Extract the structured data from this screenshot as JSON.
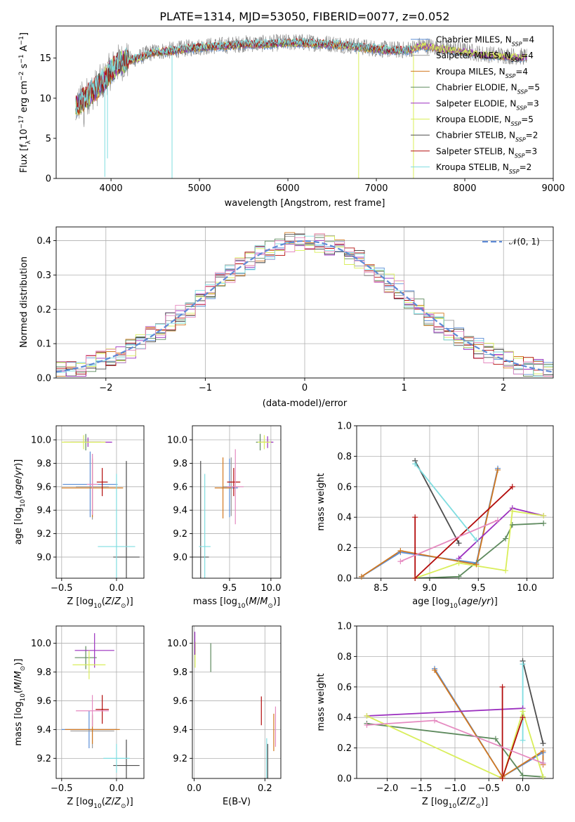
{
  "title": "PLATE=1314, MJD=53050, FIBERID=0077, z=0.052",
  "colors": {
    "Chabrier MILES": "#5b8ed6",
    "Salpeter MILES": "#9a9a9a",
    "Kroupa MILES": "#d2781f",
    "Chabrier ELODIE": "#5e8a5e",
    "Salpeter ELODIE": "#9b2fbf",
    "Kroupa ELODIE": "#d9ee5a",
    "Chabrier STELIB": "#4d4d4d",
    "Salpeter STELIB": "#b30c0c",
    "Kroupa STELIB": "#7fdde0",
    "pink": "#e58ac0",
    "data": "#808080",
    "gauss": "#5e8ad6"
  },
  "chart_data": [
    {
      "id": "spectrum",
      "type": "line",
      "xlabel": "wavelength [Angstrom, rest frame]",
      "ylabel": "Flux [fλ10⁻¹⁷ erg cm⁻² s⁻¹ A⁻¹]",
      "xlim": [
        3380,
        9000
      ],
      "ylim": [
        0,
        19
      ],
      "xticks": [
        4000,
        5000,
        6000,
        7000,
        8000,
        9000
      ],
      "yticks": [
        0,
        5,
        10,
        15
      ],
      "grid": false,
      "legend_position": "right",
      "legend": [
        {
          "name": "Chabrier MILES",
          "nssp": "4"
        },
        {
          "name": "Salpeter MILES",
          "nssp": "4"
        },
        {
          "name": "Kroupa MILES",
          "nssp": "4"
        },
        {
          "name": "Chabrier ELODIE",
          "nssp": "5"
        },
        {
          "name": "Salpeter ELODIE",
          "nssp": "3"
        },
        {
          "name": "Kroupa ELODIE",
          "nssp": "5"
        },
        {
          "name": "Chabrier STELIB",
          "nssp": "2"
        },
        {
          "name": "Salpeter STELIB",
          "nssp": "3"
        },
        {
          "name": "Kroupa STELIB",
          "nssp": "2"
        }
      ],
      "continuum": {
        "x": [
          3600,
          3700,
          3800,
          3900,
          4000,
          4100,
          4200,
          4300,
          4400,
          4500,
          4700,
          4900,
          5100,
          5300,
          5500,
          5700,
          5900,
          6100,
          6300,
          6500,
          6700,
          6900,
          7100,
          7300,
          7400,
          7500,
          7600,
          7700,
          7800,
          8000,
          8200,
          8400,
          8600
        ],
        "y": [
          9,
          10,
          11,
          12,
          13.5,
          14.5,
          14.8,
          15,
          15.5,
          15.8,
          16,
          16.3,
          16.5,
          16.6,
          16.8,
          16.8,
          16.9,
          17,
          16.9,
          16.8,
          16.6,
          16.3,
          16.1,
          16,
          16.2,
          16.6,
          16.5,
          16.3,
          16.2,
          15.9,
          15.5,
          15.4,
          15.2
        ]
      },
      "models_end": {
        "STELIB": 7400,
        "others": 8700
      }
    },
    {
      "id": "residuals",
      "type": "histogram",
      "xlabel": "(data-model)/error",
      "ylabel": "Normed distribution",
      "xlim": [
        -2.5,
        2.5
      ],
      "ylim": [
        0,
        0.44
      ],
      "xticks": [
        -2,
        -1,
        0,
        1,
        2
      ],
      "yticks": [
        0,
        0.1,
        0.2,
        0.3,
        0.4
      ],
      "grid": true,
      "legend_position": "top-right",
      "legend": [
        {
          "name": "𝒩(0, 1)"
        }
      ],
      "bin_width": 0.1,
      "gaussian": {
        "mean": 0,
        "sigma": 1
      }
    },
    {
      "id": "age-vs-Z",
      "type": "scatter",
      "xlabel": "Z [log₁₀(Z/Z⊙)]",
      "ylabel": "age  [log₁₀(age/yr)]",
      "xlim": [
        -0.55,
        0.25
      ],
      "ylim": [
        8.82,
        10.12
      ],
      "xticks": [
        -0.5,
        0.0
      ],
      "yticks": [
        9.0,
        9.2,
        9.4,
        9.6,
        9.8,
        10.0
      ],
      "grid": true,
      "points": [
        {
          "model": "Chabrier MILES",
          "x": -0.24,
          "y": 9.62,
          "xerr": 0.25,
          "yerr": 0.28
        },
        {
          "model": "Salpeter MILES",
          "x": -0.22,
          "y": 9.6,
          "xerr": 0.15,
          "yerr": 0.28
        },
        {
          "model": "Kroupa MILES",
          "x": -0.22,
          "y": 9.59,
          "xerr": 0.28,
          "yerr": 0.25
        },
        {
          "model": "Chabrier ELODIE",
          "x": -0.28,
          "y": 9.98,
          "xerr": 0.14,
          "yerr": 0.07
        },
        {
          "model": "Salpeter ELODIE",
          "x": -0.26,
          "y": 9.98,
          "xerr": 0.22,
          "yerr": 0.04
        },
        {
          "model": "Kroupa ELODIE",
          "x": -0.3,
          "y": 9.98,
          "xerr": 0.2,
          "yerr": 0.06
        },
        {
          "model": "Chabrier STELIB",
          "x": 0.09,
          "y": 9.0,
          "xerr": 0.12,
          "yerr": 0.82
        },
        {
          "model": "Salpeter STELIB",
          "x": -0.13,
          "y": 9.64,
          "xerr": 0.05,
          "yerr": 0.12
        },
        {
          "model": "Kroupa STELIB",
          "x": 0.0,
          "y": 9.09,
          "xerr": 0.17,
          "yerr": 0.62
        },
        {
          "model": "pink",
          "x": -0.22,
          "y": 9.62,
          "xerr": 0.05,
          "yerr": 0.26
        }
      ]
    },
    {
      "id": "age-vs-mass",
      "type": "scatter",
      "xlabel": "mass [log₁₀(M/M⊙)]",
      "ylabel": "",
      "xlim": [
        9.05,
        10.12
      ],
      "ylim": [
        8.82,
        10.12
      ],
      "xticks": [
        9.5,
        10.0
      ],
      "yticks": [
        9.0,
        9.2,
        9.4,
        9.6,
        9.8,
        10.0
      ],
      "grid": true,
      "points": [
        {
          "model": "Chabrier MILES",
          "x": 9.5,
          "y": 9.59,
          "xerr": 0.1,
          "yerr": 0.25
        },
        {
          "model": "Salpeter MILES",
          "x": 9.52,
          "y": 9.6,
          "xerr": 0.1,
          "yerr": 0.25
        },
        {
          "model": "Kroupa MILES",
          "x": 9.42,
          "y": 9.59,
          "xerr": 0.1,
          "yerr": 0.26
        },
        {
          "model": "Chabrier ELODIE",
          "x": 9.87,
          "y": 9.98,
          "xerr": 0.05,
          "yerr": 0.07
        },
        {
          "model": "Salpeter ELODIE",
          "x": 9.96,
          "y": 9.98,
          "xerr": 0.07,
          "yerr": 0.05
        },
        {
          "model": "Kroupa ELODIE",
          "x": 9.92,
          "y": 9.98,
          "xerr": 0.08,
          "yerr": 0.06
        },
        {
          "model": "Chabrier STELIB",
          "x": 9.15,
          "y": 9.0,
          "xerr": 0.1,
          "yerr": 0.82
        },
        {
          "model": "Salpeter STELIB",
          "x": 9.55,
          "y": 9.64,
          "xerr": 0.08,
          "yerr": 0.12
        },
        {
          "model": "Kroupa STELIB",
          "x": 9.2,
          "y": 9.09,
          "xerr": 0.07,
          "yerr": 0.62
        },
        {
          "model": "pink",
          "x": 9.57,
          "y": 9.6,
          "xerr": 0.1,
          "yerr": 0.32
        }
      ]
    },
    {
      "id": "weight-vs-age",
      "type": "line",
      "xlabel": "age  [log₁₀(age/yr)]",
      "ylabel": "mass weight",
      "xlim": [
        8.25,
        10.27
      ],
      "ylim": [
        0.0,
        1.0
      ],
      "xticks": [
        8.5,
        9.0,
        9.5,
        10.0
      ],
      "yticks": [
        0.0,
        0.2,
        0.4,
        0.6,
        0.8,
        1.0
      ],
      "grid": true,
      "series": [
        {
          "model": "Chabrier MILES",
          "x": [
            8.3,
            8.7,
            9.48,
            9.7
          ],
          "y": [
            0.01,
            0.17,
            0.1,
            0.72
          ]
        },
        {
          "model": "Kroupa MILES",
          "x": [
            8.3,
            8.7,
            9.48,
            9.7
          ],
          "y": [
            0.01,
            0.18,
            0.09,
            0.71
          ]
        },
        {
          "model": "Chabrier ELODIE",
          "x": [
            8.85,
            9.3,
            9.78,
            9.85,
            10.17
          ],
          "y": [
            0.0,
            0.01,
            0.26,
            0.35,
            0.36
          ]
        },
        {
          "model": "Salpeter ELODIE",
          "x": [
            9.3,
            9.85,
            10.17
          ],
          "y": [
            0.13,
            0.46,
            0.41
          ]
        },
        {
          "model": "Kroupa ELODIE",
          "x": [
            8.85,
            9.3,
            9.78,
            9.85,
            10.17
          ],
          "y": [
            0.0,
            0.1,
            0.05,
            0.44,
            0.41
          ]
        },
        {
          "model": "Chabrier STELIB",
          "x": [
            8.85,
            9.3
          ],
          "y": [
            0.77,
            0.23
          ]
        },
        {
          "model": "Salpeter STELIB",
          "x": [
            8.85,
            8.85,
            9.85
          ],
          "y": [
            0.4,
            0.0,
            0.6
          ]
        },
        {
          "model": "Kroupa STELIB",
          "x": [
            8.85,
            9.48
          ],
          "y": [
            0.75,
            0.25
          ]
        },
        {
          "model": "pink",
          "x": [
            8.7,
            9.7
          ],
          "y": [
            0.11,
            0.38
          ]
        }
      ]
    },
    {
      "id": "mass-vs-Z",
      "type": "scatter",
      "xlabel": "Z [log₁₀(Z/Z⊙)]",
      "ylabel": "mass [log₁₀(M/M⊙)]",
      "xlim": [
        -0.55,
        0.25
      ],
      "ylim": [
        9.06,
        10.12
      ],
      "xticks": [
        -0.5,
        0.0
      ],
      "yticks": [
        9.2,
        9.4,
        9.6,
        9.8,
        10.0
      ],
      "grid": true,
      "points": [
        {
          "model": "Chabrier MILES",
          "x": -0.25,
          "y": 9.4,
          "xerr": 0.25,
          "yerr": 0.13
        },
        {
          "model": "Salpeter MILES",
          "x": -0.22,
          "y": 9.39,
          "xerr": 0.2,
          "yerr": 0.12
        },
        {
          "model": "Kroupa MILES",
          "x": -0.22,
          "y": 9.4,
          "xerr": 0.25,
          "yerr": 0.1
        },
        {
          "model": "Chabrier ELODIE",
          "x": -0.28,
          "y": 9.9,
          "xerr": 0.1,
          "yerr": 0.08
        },
        {
          "model": "Salpeter ELODIE",
          "x": -0.2,
          "y": 9.95,
          "xerr": 0.18,
          "yerr": 0.12
        },
        {
          "model": "Kroupa ELODIE",
          "x": -0.25,
          "y": 9.85,
          "xerr": 0.15,
          "yerr": 0.1
        },
        {
          "model": "Chabrier STELIB",
          "x": 0.09,
          "y": 9.15,
          "xerr": 0.12,
          "yerr": 0.18
        },
        {
          "model": "Salpeter STELIB",
          "x": -0.13,
          "y": 9.54,
          "xerr": 0.06,
          "yerr": 0.1
        },
        {
          "model": "Kroupa STELIB",
          "x": 0.0,
          "y": 9.2,
          "xerr": 0.12,
          "yerr": 0.1
        },
        {
          "model": "pink",
          "x": -0.22,
          "y": 9.53,
          "xerr": 0.15,
          "yerr": 0.11
        }
      ]
    },
    {
      "id": "mass-vs-EBV",
      "type": "scatter",
      "xlabel": "E(B-V)",
      "ylabel": "",
      "xlim": [
        -0.005,
        0.245
      ],
      "ylim": [
        9.06,
        10.12
      ],
      "xticks": [
        0.0,
        0.2
      ],
      "yticks": [
        9.2,
        9.4,
        9.6,
        9.8,
        10.0
      ],
      "grid": true,
      "points": [
        {
          "model": "Kroupa ELODIE",
          "x": 0.003,
          "y": 9.92,
          "xerr": 0.0,
          "yerr": 0.09
        },
        {
          "model": "Salpeter ELODIE",
          "x": 0.002,
          "y": 10.0,
          "xerr": 0.0,
          "yerr": 0.08
        },
        {
          "model": "Chabrier ELODIE",
          "x": 0.047,
          "y": 9.9,
          "xerr": 0.0,
          "yerr": 0.1
        },
        {
          "model": "Salpeter STELIB",
          "x": 0.19,
          "y": 9.53,
          "xerr": 0.0,
          "yerr": 0.1
        },
        {
          "model": "Kroupa STELIB",
          "x": 0.205,
          "y": 9.2,
          "xerr": 0.0,
          "yerr": 0.14
        },
        {
          "model": "Chabrier STELIB",
          "x": 0.208,
          "y": 9.18,
          "xerr": 0.0,
          "yerr": 0.12
        },
        {
          "model": "Kroupa MILES",
          "x": 0.225,
          "y": 9.38,
          "xerr": 0.0,
          "yerr": 0.13
        },
        {
          "model": "pink",
          "x": 0.23,
          "y": 9.42,
          "xerr": 0.0,
          "yerr": 0.14
        }
      ]
    },
    {
      "id": "weight-vs-Z",
      "type": "line",
      "xlabel": "Z [log₁₀(Z/Z⊙)]",
      "ylabel": "mass weight",
      "xlim": [
        -2.45,
        0.45
      ],
      "ylim": [
        0.0,
        1.0
      ],
      "xticks": [
        -2.0,
        -1.5,
        -1.0,
        -0.5,
        0.0
      ],
      "yticks": [
        0.0,
        0.2,
        0.4,
        0.6,
        0.8,
        1.0
      ],
      "grid": true,
      "series": [
        {
          "model": "Chabrier MILES",
          "x": [
            -1.3,
            -0.3,
            0.3,
            0.3
          ],
          "y": [
            0.72,
            0.01,
            0.17,
            0.1
          ]
        },
        {
          "model": "Kroupa MILES",
          "x": [
            -1.3,
            -0.3,
            0.3,
            0.3
          ],
          "y": [
            0.71,
            0.01,
            0.18,
            0.09
          ]
        },
        {
          "model": "Chabrier ELODIE",
          "x": [
            -2.3,
            -0.4,
            0.0,
            0.3
          ],
          "y": [
            0.36,
            0.26,
            0.02,
            0.01
          ]
        },
        {
          "model": "Salpeter ELODIE",
          "x": [
            -2.3,
            0.0
          ],
          "y": [
            0.41,
            0.46
          ]
        },
        {
          "model": "Kroupa ELODIE",
          "x": [
            -2.3,
            -0.3,
            0.0,
            0.3
          ],
          "y": [
            0.41,
            0.0,
            0.44,
            0.01
          ]
        },
        {
          "model": "Chabrier STELIB",
          "x": [
            0.0,
            0.3
          ],
          "y": [
            0.77,
            0.23
          ]
        },
        {
          "model": "Salpeter STELIB",
          "x": [
            -0.3,
            -0.3,
            0.0
          ],
          "y": [
            0.6,
            0.0,
            0.4
          ]
        },
        {
          "model": "Kroupa STELIB",
          "x": [
            0.0,
            0.0
          ],
          "y": [
            0.75,
            0.25
          ]
        },
        {
          "model": "pink",
          "x": [
            -2.3,
            -1.3,
            0.3
          ],
          "y": [
            0.35,
            0.38,
            0.1
          ]
        }
      ]
    }
  ]
}
